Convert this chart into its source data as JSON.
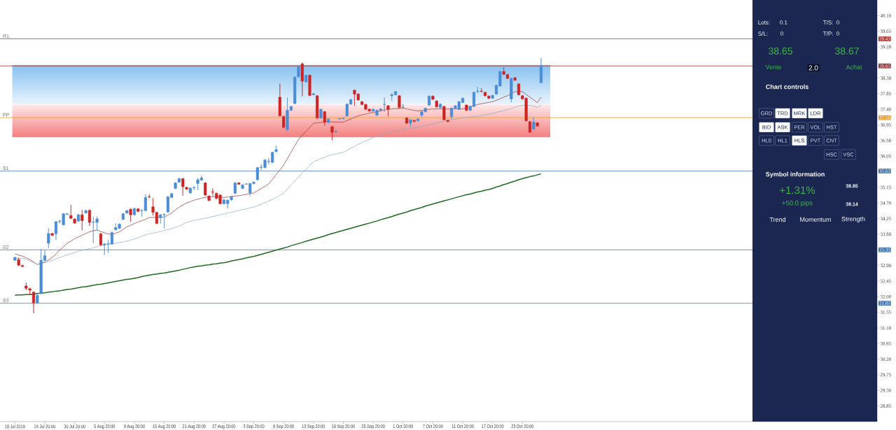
{
  "chart_data": [
    {
      "type": "candlestick",
      "categories": [
        "18 Jul 2019",
        null,
        null,
        null,
        null,
        null,
        null,
        null,
        "24 Jul 20:00",
        null,
        null,
        null,
        null,
        null,
        null,
        null,
        "30 Jul 20:00",
        null,
        null,
        null,
        null,
        null,
        null,
        null,
        "5 Aug 20:00",
        null,
        null,
        null,
        null,
        null,
        null,
        null,
        "9 Aug 20:00",
        null,
        null,
        null,
        null,
        null,
        null,
        null,
        "15 Aug 20:00",
        null,
        null,
        null,
        null,
        null,
        null,
        null,
        "21 Aug 20:00",
        null,
        null,
        null,
        null,
        null,
        null,
        null,
        "27 Aug 20:00",
        null,
        null,
        null,
        null,
        null,
        null,
        null,
        "3 Sep 20:00",
        null,
        null,
        null,
        null,
        null,
        null,
        null,
        "9 Sep 20:00",
        null,
        null,
        null,
        null,
        null,
        null,
        null,
        "13 Sep 20:00",
        null,
        null,
        null,
        null,
        null,
        null,
        null,
        "19 Sep 20:00",
        null,
        null,
        null,
        null,
        null,
        null,
        null,
        "25 Sep 20:00",
        null,
        null,
        null,
        null,
        null,
        null,
        null,
        "1 Oct 20:00",
        null,
        null,
        null,
        null,
        null,
        null,
        null,
        "7 Oct 20:00",
        null,
        null,
        null,
        null,
        null,
        null,
        null,
        "11 Oct 20:00",
        null,
        null,
        null,
        null,
        null,
        null,
        null,
        "17 Oct 20:00",
        null,
        null,
        null,
        null,
        null,
        null,
        null,
        "23 Oct 20:00",
        null,
        null,
        null,
        null,
        null
      ],
      "ohlc": [
        [
          33.05,
          33.15,
          33.03,
          33.13
        ],
        [
          33.07,
          33.12,
          32.88,
          32.91
        ],
        [
          32.9,
          32.92,
          32.85,
          32.87
        ],
        [
          32.31,
          32.41,
          32.19,
          32.24
        ],
        [
          32.23,
          32.26,
          32.06,
          32.19
        ],
        [
          32.13,
          32.15,
          31.52,
          31.82
        ],
        [
          31.82,
          32.06,
          31.8,
          32.04
        ],
        [
          32.09,
          33.37,
          32.07,
          33.05
        ],
        [
          33.05,
          33.34,
          33.03,
          33.18
        ],
        [
          33.54,
          33.97,
          33.4,
          33.82
        ],
        [
          33.82,
          33.84,
          33.75,
          33.77
        ],
        [
          33.81,
          34.18,
          33.64,
          34.16
        ],
        [
          34.17,
          34.21,
          34.11,
          34.18
        ],
        [
          34.07,
          34.41,
          34.05,
          34.39
        ],
        [
          34.37,
          34.4,
          34.36,
          34.39
        ],
        [
          34.34,
          34.65,
          34.24,
          34.26
        ],
        [
          34.24,
          34.26,
          34.1,
          34.12
        ],
        [
          34.18,
          34.38,
          34.16,
          34.36
        ],
        [
          34.36,
          34.5,
          33.91,
          34.19
        ],
        [
          34.41,
          34.51,
          34.4,
          34.48
        ],
        [
          34.49,
          34.51,
          34.04,
          34.14
        ],
        [
          34.14,
          34.31,
          33.54,
          34.15
        ],
        [
          34.14,
          34.31,
          33.91,
          34.24
        ],
        [
          33.81,
          33.84,
          33.47,
          33.49
        ],
        [
          33.49,
          33.54,
          33.2,
          33.52
        ],
        [
          33.52,
          33.64,
          33.27,
          33.53
        ],
        [
          33.52,
          33.87,
          33.5,
          33.85
        ],
        [
          33.93,
          34.11,
          33.91,
          33.99
        ],
        [
          33.97,
          34.11,
          33.95,
          34.09
        ],
        [
          34.23,
          34.41,
          34.21,
          34.39
        ],
        [
          34.41,
          34.5,
          34.4,
          34.48
        ],
        [
          34.52,
          34.54,
          34.16,
          34.36
        ],
        [
          34.36,
          34.56,
          34.34,
          34.54
        ],
        [
          34.53,
          34.55,
          34.44,
          34.46
        ],
        [
          34.48,
          34.51,
          34.31,
          34.49
        ],
        [
          34.48,
          34.95,
          34.46,
          34.86
        ],
        [
          34.88,
          34.95,
          34.84,
          34.87
        ],
        [
          34.59,
          34.85,
          34.34,
          34.43
        ],
        [
          34.43,
          34.45,
          34.09,
          34.11
        ],
        [
          34.28,
          34.38,
          34.11,
          34.36
        ],
        [
          34.36,
          34.39,
          33.97,
          34.37
        ],
        [
          34.44,
          34.9,
          34.42,
          34.88
        ],
        [
          34.86,
          34.99,
          34.84,
          34.97
        ],
        [
          35.12,
          35.3,
          35.1,
          35.28
        ],
        [
          35.3,
          35.42,
          35.28,
          35.4
        ],
        [
          35.4,
          35.42,
          34.91,
          35.17
        ],
        [
          35.15,
          35.17,
          35.08,
          35.1
        ],
        [
          34.99,
          35.15,
          34.97,
          35.13
        ],
        [
          35.14,
          35.18,
          35.08,
          35.15
        ],
        [
          35.26,
          35.42,
          35.08,
          35.37
        ],
        [
          35.36,
          35.49,
          35.34,
          35.42
        ],
        [
          35.28,
          35.3,
          34.91,
          34.93
        ],
        [
          34.9,
          34.92,
          34.75,
          34.77
        ],
        [
          35.02,
          35.12,
          34.91,
          35.01
        ],
        [
          34.98,
          35.0,
          34.81,
          34.83
        ],
        [
          34.93,
          34.95,
          34.66,
          34.68
        ],
        [
          34.68,
          34.81,
          34.66,
          34.79
        ],
        [
          34.68,
          34.8,
          34.54,
          34.78
        ],
        [
          34.79,
          34.9,
          34.77,
          34.88
        ],
        [
          34.98,
          35.3,
          34.96,
          35.28
        ],
        [
          35.28,
          35.3,
          35.22,
          35.24
        ],
        [
          35.12,
          35.24,
          35.1,
          35.22
        ],
        [
          35.24,
          35.27,
          35.23,
          35.25
        ],
        [
          34.99,
          35.28,
          34.9,
          35.26
        ],
        [
          35.26,
          35.32,
          35.24,
          35.3
        ],
        [
          35.37,
          35.74,
          35.35,
          35.72
        ],
        [
          35.72,
          35.82,
          35.65,
          35.73
        ],
        [
          35.72,
          35.96,
          35.7,
          35.94
        ],
        [
          35.89,
          35.99,
          35.82,
          35.9
        ],
        [
          35.87,
          36.18,
          35.85,
          36.16
        ],
        [
          36.18,
          36.36,
          36.16,
          36.24
        ],
        [
          37.75,
          38.14,
          37.19,
          37.21
        ],
        [
          37.19,
          37.21,
          36.86,
          36.88
        ],
        [
          36.81,
          37.74,
          36.79,
          37.37
        ],
        [
          37.37,
          37.5,
          37.35,
          37.48
        ],
        [
          37.57,
          38.35,
          37.55,
          38.33
        ],
        [
          38.34,
          38.65,
          38.32,
          38.62
        ],
        [
          38.71,
          38.75,
          37.77,
          38.21
        ],
        [
          38.19,
          38.4,
          38.17,
          38.38
        ],
        [
          38.38,
          38.4,
          37.78,
          37.8
        ],
        [
          37.82,
          37.87,
          37.8,
          37.85
        ],
        [
          37.79,
          37.81,
          37.13,
          37.15
        ],
        [
          37.15,
          37.42,
          37.13,
          37.4
        ],
        [
          37.33,
          37.35,
          36.93,
          37.03
        ],
        [
          37.03,
          37.14,
          36.98,
          37.12
        ],
        [
          36.9,
          36.92,
          36.51,
          36.73
        ],
        [
          36.75,
          36.79,
          36.73,
          36.77
        ],
        [
          37.12,
          37.15,
          37.1,
          37.13
        ],
        [
          37.13,
          37.16,
          37.11,
          37.14
        ],
        [
          37.21,
          37.57,
          37.19,
          37.55
        ],
        [
          37.55,
          37.7,
          37.53,
          37.68
        ],
        [
          37.95,
          37.97,
          37.5,
          37.84
        ],
        [
          37.84,
          37.86,
          37.65,
          37.67
        ],
        [
          37.62,
          37.64,
          37.52,
          37.54
        ],
        [
          37.54,
          37.56,
          37.38,
          37.4
        ],
        [
          37.4,
          37.42,
          37.33,
          37.35
        ],
        [
          37.35,
          37.42,
          37.33,
          37.4
        ],
        [
          37.23,
          37.39,
          37.21,
          37.37
        ],
        [
          37.37,
          37.43,
          37.35,
          37.41
        ],
        [
          37.54,
          37.74,
          37.33,
          37.55
        ],
        [
          37.5,
          37.52,
          37.2,
          37.4
        ],
        [
          37.79,
          37.87,
          37.64,
          37.82
        ],
        [
          37.82,
          37.93,
          37.8,
          37.91
        ],
        [
          37.79,
          37.81,
          37.43,
          37.45
        ],
        [
          37.45,
          37.55,
          37.43,
          37.46
        ],
        [
          37.15,
          37.17,
          36.98,
          37.0
        ],
        [
          37.0,
          37.12,
          36.9,
          37.1
        ],
        [
          37.08,
          37.1,
          37.03,
          37.05
        ],
        [
          37.07,
          37.14,
          37.05,
          37.12
        ],
        [
          37.23,
          37.35,
          37.17,
          37.33
        ],
        [
          37.33,
          37.45,
          37.31,
          37.43
        ],
        [
          37.52,
          37.8,
          37.5,
          37.78
        ],
        [
          37.78,
          37.8,
          37.67,
          37.69
        ],
        [
          37.64,
          37.66,
          37.45,
          37.47
        ],
        [
          37.45,
          37.57,
          37.43,
          37.55
        ],
        [
          37.48,
          37.5,
          37.08,
          37.1
        ],
        [
          37.08,
          37.1,
          37.03,
          37.05
        ],
        [
          37.19,
          37.45,
          37.12,
          37.43
        ],
        [
          37.43,
          37.52,
          37.41,
          37.5
        ],
        [
          37.4,
          37.64,
          37.38,
          37.62
        ],
        [
          37.6,
          37.74,
          37.58,
          37.72
        ],
        [
          37.52,
          37.54,
          37.35,
          37.37
        ],
        [
          37.37,
          37.5,
          37.35,
          37.48
        ],
        [
          37.48,
          37.91,
          37.46,
          37.89
        ],
        [
          37.91,
          38.04,
          37.87,
          37.92
        ],
        [
          37.92,
          38.01,
          37.89,
          37.91
        ],
        [
          37.89,
          37.91,
          37.77,
          37.79
        ],
        [
          37.78,
          37.8,
          37.7,
          37.72
        ],
        [
          37.72,
          37.82,
          37.7,
          37.8
        ],
        [
          37.84,
          38.11,
          37.82,
          38.09
        ],
        [
          38.07,
          38.51,
          38.05,
          38.49
        ],
        [
          38.49,
          38.61,
          38.39,
          38.41
        ],
        [
          38.4,
          38.42,
          38.27,
          38.29
        ],
        [
          37.7,
          38.31,
          37.6,
          38.29
        ],
        [
          38.31,
          38.33,
          38.22,
          38.24
        ],
        [
          38.13,
          38.15,
          37.8,
          37.82
        ],
        [
          37.79,
          37.81,
          37.68,
          37.7
        ],
        [
          37.72,
          37.74,
          37.05,
          37.07
        ],
        [
          37.04,
          37.06,
          36.72,
          36.74
        ],
        [
          36.83,
          37.17,
          36.81,
          37.03
        ],
        [
          37.01,
          37.03,
          36.9,
          36.92
        ],
        [
          38.17,
          38.88,
          38.15,
          38.65
        ]
      ],
      "colors": [
        "#4a8cd6",
        "#cc2424",
        "#cc2424",
        "#cc2424",
        "#cc2424",
        "#cc2424",
        "#4a8cd6",
        "#4a8cd6",
        "#4a8cd6",
        "#4a8cd6",
        "#cc2424",
        "#4a8cd6",
        "#4a8cd6",
        "#4a8cd6",
        "#4a8cd6",
        "#cc2424",
        "#cc2424",
        "#4a8cd6",
        "#cc2424",
        "#4a8cd6",
        "#cc2424",
        "#4a8cd6",
        "#4a8cd6",
        "#cc2424",
        "#4a8cd6",
        "#4a8cd6",
        "#4a8cd6",
        "#4a8cd6",
        "#4a8cd6",
        "#4a8cd6",
        "#4a8cd6",
        "#cc2424",
        "#4a8cd6",
        "#cc2424",
        "#4a8cd6",
        "#4a8cd6",
        "#cc2424",
        "#cc2424",
        "#cc2424",
        "#4a8cd6",
        "#4a8cd6",
        "#4a8cd6",
        "#4a8cd6",
        "#4a8cd6",
        "#4a8cd6",
        "#cc2424",
        "#cc2424",
        "#4a8cd6",
        "#4a8cd6",
        "#4a8cd6",
        "#4a8cd6",
        "#cc2424",
        "#cc2424",
        "#cc2424",
        "#cc2424",
        "#cc2424",
        "#4a8cd6",
        "#4a8cd6",
        "#4a8cd6",
        "#4a8cd6",
        "#cc2424",
        "#4a8cd6",
        "#4a8cd6",
        "#4a8cd6",
        "#4a8cd6",
        "#4a8cd6",
        "#4a8cd6",
        "#4a8cd6",
        "#4a8cd6",
        "#4a8cd6",
        "#4a8cd6",
        "#cc2424",
        "#cc2424",
        "#4a8cd6",
        "#4a8cd6",
        "#4a8cd6",
        "#4a8cd6",
        "#cc2424",
        "#4a8cd6",
        "#cc2424",
        "#4a8cd6",
        "#cc2424",
        "#4a8cd6",
        "#cc2424",
        "#4a8cd6",
        "#cc2424",
        "#4a8cd6",
        "#4a8cd6",
        "#4a8cd6",
        "#4a8cd6",
        "#4a8cd6",
        "#cc2424",
        "#cc2424",
        "#cc2424",
        "#cc2424",
        "#cc2424",
        "#4a8cd6",
        "#4a8cd6",
        "#4a8cd6",
        "#4a8cd6",
        "#cc2424",
        "#4a8cd6",
        "#4a8cd6",
        "#cc2424",
        "#4a8cd6",
        "#cc2424",
        "#4a8cd6",
        "#cc2424",
        "#4a8cd6",
        "#4a8cd6",
        "#4a8cd6",
        "#4a8cd6",
        "#cc2424",
        "#cc2424",
        "#4a8cd6",
        "#cc2424",
        "#cc2424",
        "#4a8cd6",
        "#4a8cd6",
        "#4a8cd6",
        "#4a8cd6",
        "#cc2424",
        "#4a8cd6",
        "#4a8cd6",
        "#4a8cd6",
        "#cc2424",
        "#cc2424",
        "#cc2424",
        "#4a8cd6",
        "#4a8cd6",
        "#4a8cd6",
        "#cc2424",
        "#cc2424",
        "#4a8cd6",
        "#cc2424",
        "#cc2424",
        "#cc2424",
        "#cc2424",
        "#cc2424",
        "#4a8cd6",
        "#cc2424",
        "#4a8cd6"
      ],
      "series": [
        {
          "type": "line",
          "color": "#9c2f2f",
          "values": [
            33.23,
            33.2,
            33.17,
            33.12,
            33.07,
            33.0,
            32.93,
            32.96,
            33.0,
            33.06,
            33.13,
            33.23,
            33.34,
            33.44,
            33.54,
            33.6,
            33.67,
            33.72,
            33.77,
            33.82,
            33.87,
            33.9,
            33.92,
            33.88,
            33.84,
            33.81,
            33.79,
            33.83,
            33.87,
            33.94,
            34.01,
            34.06,
            34.11,
            34.15,
            34.19,
            34.23,
            34.28,
            34.28,
            34.29,
            34.29,
            34.29,
            34.35,
            34.41,
            34.5,
            34.58,
            34.64,
            34.7,
            34.74,
            34.78,
            34.81,
            34.84,
            34.86,
            34.89,
            34.88,
            34.87,
            34.87,
            34.86,
            34.87,
            34.89,
            34.9,
            34.91,
            34.93,
            34.95,
            34.97,
            34.99,
            35.05,
            35.12,
            35.18,
            35.25,
            35.38,
            35.52,
            35.65,
            35.79,
            35.98,
            36.16,
            36.35,
            36.53,
            36.65,
            36.77,
            36.88,
            37.0,
            37.01,
            37.02,
            37.03,
            37.04,
            37.04,
            37.03,
            37.03,
            37.03,
            37.08,
            37.12,
            37.17,
            37.21,
            37.24,
            37.26,
            37.29,
            37.31,
            37.33,
            37.35,
            37.38,
            37.4,
            37.41,
            37.42,
            37.42,
            37.43,
            37.41,
            37.39,
            37.37,
            37.35,
            37.37,
            37.38,
            37.4,
            37.41,
            37.41,
            37.41,
            37.41,
            37.41,
            37.41,
            37.41,
            37.41,
            37.41,
            37.44,
            37.48,
            37.51,
            37.54,
            37.56,
            37.58,
            37.6,
            37.62,
            37.66,
            37.7,
            37.75,
            37.79,
            37.85,
            37.91,
            37.91,
            37.91,
            37.83,
            37.75,
            37.67,
            37.59,
            37.75
          ]
        },
        {
          "type": "line",
          "color": "#8ea9c4",
          "values": [
            33.12,
            33.11,
            33.1,
            33.07,
            33.03,
            32.98,
            32.93,
            32.95,
            32.98,
            33.01,
            33.05,
            33.09,
            33.13,
            33.17,
            33.2,
            33.24,
            33.27,
            33.31,
            33.34,
            33.36,
            33.38,
            33.41,
            33.44,
            33.47,
            33.49,
            33.51,
            33.52,
            33.54,
            33.56,
            33.58,
            33.6,
            33.63,
            33.66,
            33.7,
            33.74,
            33.78,
            33.81,
            33.83,
            33.85,
            33.88,
            33.91,
            33.93,
            33.96,
            34.0,
            34.03,
            34.09,
            34.14,
            34.17,
            34.2,
            34.22,
            34.24,
            34.26,
            34.28,
            34.31,
            34.33,
            34.36,
            34.38,
            34.41,
            34.43,
            34.46,
            34.48,
            34.51,
            34.53,
            34.56,
            34.58,
            34.62,
            34.67,
            34.71,
            34.75,
            34.81,
            34.86,
            34.92,
            34.98,
            35.1,
            35.22,
            35.33,
            35.45,
            35.56,
            35.67,
            35.78,
            35.89,
            35.93,
            35.98,
            36.02,
            36.06,
            36.09,
            36.11,
            36.14,
            36.16,
            36.22,
            36.28,
            36.33,
            36.39,
            36.44,
            36.49,
            36.54,
            36.59,
            36.63,
            36.67,
            36.7,
            36.74,
            36.76,
            36.78,
            36.8,
            36.82,
            36.84,
            36.85,
            36.87,
            36.88,
            36.91,
            36.93,
            36.96,
            36.98,
            37.01,
            37.03,
            37.06,
            37.08,
            37.1,
            37.12,
            37.13,
            37.15,
            37.16,
            37.18,
            37.19,
            37.2,
            37.22,
            37.24,
            37.26,
            37.28,
            37.31,
            37.34,
            37.36,
            37.39,
            37.42,
            37.46,
            37.49,
            37.52,
            37.52,
            37.52,
            37.49,
            37.45,
            37.52
          ]
        },
        {
          "type": "line",
          "color": "#1e6b1e",
          "values": [
            32.04,
            32.05,
            32.05,
            32.06,
            32.06,
            32.07,
            32.09,
            32.1,
            32.11,
            32.13,
            32.14,
            32.16,
            32.17,
            32.19,
            32.21,
            32.22,
            32.24,
            32.26,
            32.28,
            32.29,
            32.31,
            32.33,
            32.35,
            32.36,
            32.38,
            32.4,
            32.42,
            32.44,
            32.46,
            32.48,
            32.5,
            32.51,
            32.53,
            32.55,
            32.58,
            32.6,
            32.62,
            32.64,
            32.65,
            32.67,
            32.68,
            32.7,
            32.72,
            32.74,
            32.76,
            32.79,
            32.81,
            32.84,
            32.86,
            32.88,
            32.89,
            32.91,
            32.92,
            32.94,
            32.95,
            32.97,
            32.98,
            33.0,
            33.03,
            33.05,
            33.07,
            33.09,
            33.12,
            33.14,
            33.16,
            33.19,
            33.22,
            33.25,
            33.28,
            33.31,
            33.34,
            33.37,
            33.4,
            33.43,
            33.47,
            33.5,
            33.53,
            33.56,
            33.6,
            33.63,
            33.66,
            33.69,
            33.72,
            33.75,
            33.79,
            33.82,
            33.85,
            33.88,
            33.91,
            33.94,
            33.97,
            34.0,
            34.03,
            34.06,
            34.09,
            34.12,
            34.15,
            34.18,
            34.22,
            34.25,
            34.28,
            34.31,
            34.35,
            34.38,
            34.41,
            34.44,
            34.48,
            34.51,
            34.54,
            34.57,
            34.61,
            34.64,
            34.67,
            34.7,
            34.73,
            34.76,
            34.79,
            34.82,
            34.85,
            34.88,
            34.91,
            34.94,
            34.96,
            34.99,
            35.02,
            35.04,
            35.07,
            35.09,
            35.12,
            35.16,
            35.19,
            35.23,
            35.26,
            35.3,
            35.33,
            35.37,
            35.4,
            35.43,
            35.46,
            35.48,
            35.51,
            35.54
          ]
        }
      ],
      "ylim": [
        28.4,
        40.55
      ],
      "yticks": [
        28.85,
        {
          "value": 29.3,
          "label": "29.30"
        },
        29.75,
        {
          "value": 30.2,
          "label": "30.20"
        },
        30.65,
        {
          "value": 31.1,
          "label": "31.10"
        },
        31.55,
        {
          "value": 32,
          "label": "32.00"
        },
        32.45,
        {
          "value": 32.9,
          "label": "32.90"
        },
        {
          "value": 33.8,
          "label": "33.80"
        },
        34.25,
        {
          "value": 34.7,
          "label": "34.70"
        },
        35.15,
        36.05,
        {
          "value": 36.5,
          "label": "36.50"
        },
        36.95,
        {
          "value": 37.4,
          "label": "37.40"
        },
        37.85,
        {
          "value": 38.3,
          "label": "38.30"
        },
        {
          "value": 39.2,
          "label": "39.20"
        },
        39.65,
        {
          "value": 40.1,
          "label": "40.10"
        }
      ],
      "ref_lines": [
        {
          "axis": "y",
          "value": 39.43,
          "label": "R1",
          "color": "#b23a3a"
        },
        {
          "axis": "y",
          "value": 38.65,
          "color": "#9b3535"
        },
        {
          "axis": "y",
          "value": 37.16,
          "label": "PP",
          "color": "#f0a02c"
        },
        {
          "axis": "y",
          "value": 35.62,
          "label": "S1",
          "color": "#4677b0"
        },
        {
          "axis": "y",
          "value": 33.35,
          "label": "S2",
          "color": "#4677b0"
        },
        {
          "axis": "y",
          "value": 31.81,
          "label": "S3",
          "color": "#4677b0"
        }
      ],
      "bands": [
        {
          "axis": "y",
          "from": 37.54,
          "to": 38.68,
          "color": "#86c0f0"
        },
        {
          "axis": "y",
          "from": 37.54,
          "to": 36.59,
          "color": "#f47f7f"
        }
      ],
      "annotations": [
        "39.43",
        "38.65",
        "37.16",
        "35.62",
        "33.35",
        "31.81"
      ]
    },
    {
      "type": "other",
      "annotations": [
        "Lots:",
        "0.1",
        "T/S:",
        "0",
        "S/L:",
        "0",
        "T/P:",
        "0",
        "38.65",
        "38.67",
        "Vente",
        "2.0",
        "Achat",
        "Chart controls",
        "GRD",
        "TRD",
        "MRK",
        "LDR",
        "BID",
        "ASK",
        "PER",
        "VOL",
        "HST",
        "HL0",
        "HL1",
        "HLS",
        "PVT",
        "CNT",
        "HSC",
        "VSC",
        "Symbol information",
        "+1.31%",
        "+50.0 pips",
        "38.85",
        "38.14",
        "Trend",
        "Momentum",
        "Strength"
      ]
    }
  ]
}
